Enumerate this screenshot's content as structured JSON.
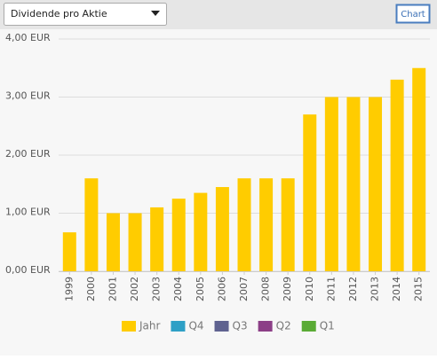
{
  "ui": {
    "dropdown": "Dividende pro Aktie",
    "button": "Chart"
  },
  "chart_data": {
    "type": "bar",
    "categories": [
      "1999",
      "2000",
      "2001",
      "2002",
      "2003",
      "2004",
      "2005",
      "2006",
      "2007",
      "2008",
      "2009",
      "2010",
      "2011",
      "2012",
      "2013",
      "2014",
      "2015"
    ],
    "series": [
      {
        "name": "Jahr",
        "color": "#ffcc00",
        "values": [
          0.67,
          1.6,
          1.0,
          1.0,
          1.1,
          1.25,
          1.35,
          1.45,
          1.6,
          1.6,
          1.6,
          2.7,
          3.0,
          3.0,
          3.0,
          3.3,
          3.5
        ]
      },
      {
        "name": "Q4",
        "color": "#2ea0c6"
      },
      {
        "name": "Q3",
        "color": "#5f6290"
      },
      {
        "name": "Q2",
        "color": "#8c3f87"
      },
      {
        "name": "Q1",
        "color": "#5aab35"
      }
    ],
    "ylim": [
      0,
      4
    ],
    "yticks": [
      {
        "value": 0,
        "label": "0,00 EUR"
      },
      {
        "value": 1,
        "label": "1,00 EUR"
      },
      {
        "value": 2,
        "label": "2,00 EUR"
      },
      {
        "value": 3,
        "label": "3,00 EUR"
      },
      {
        "value": 4,
        "label": "4,00 EUR"
      }
    ],
    "grid": true,
    "legend": "bottom"
  }
}
